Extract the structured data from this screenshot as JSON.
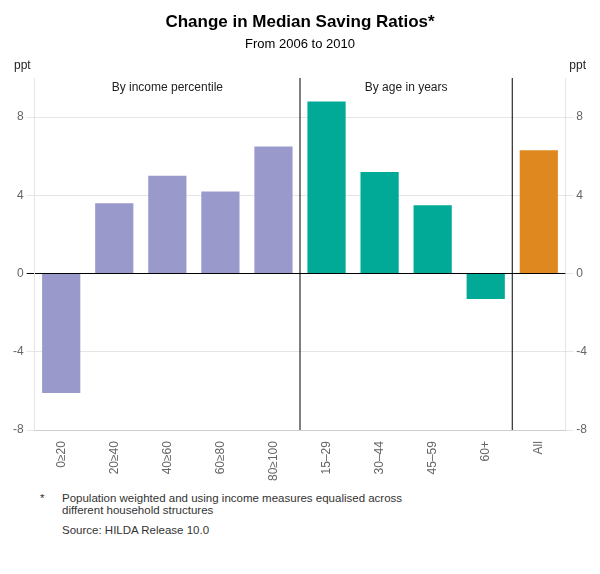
{
  "chart_data": {
    "type": "bar",
    "title": "Change in Median Saving Ratios*",
    "subtitle": "From 2006 to 2010",
    "ylabel": "ppt",
    "y2label": "ppt",
    "categories": [
      "0≥20",
      "20≥40",
      "40≥60",
      "60≥80",
      "80≥100",
      "15–29",
      "30–44",
      "45–59",
      "60+",
      "All"
    ],
    "values": [
      -6.1,
      3.6,
      5.0,
      4.2,
      6.5,
      8.8,
      5.2,
      3.5,
      -1.3,
      6.3
    ],
    "colors": [
      "#9999cc",
      "#9999cc",
      "#9999cc",
      "#9999cc",
      "#9999cc",
      "#00aa96",
      "#00aa96",
      "#00aa96",
      "#00aa96",
      "#e08820"
    ],
    "ylim": [
      -8,
      10
    ],
    "yticks": [
      -8,
      -4,
      0,
      4,
      8
    ],
    "y2lim": [
      -8,
      10
    ],
    "y2ticks": [
      -8,
      -4,
      0,
      4,
      8
    ],
    "grid": true,
    "annotations": [
      "By income percentile",
      "By age in years"
    ],
    "footnotes": [
      {
        "mark": "*",
        "text": "Population weighted and using income measures equalised across\ndifferent household structures"
      },
      {
        "text": "Source: HILDA Release 10.0"
      }
    ]
  }
}
